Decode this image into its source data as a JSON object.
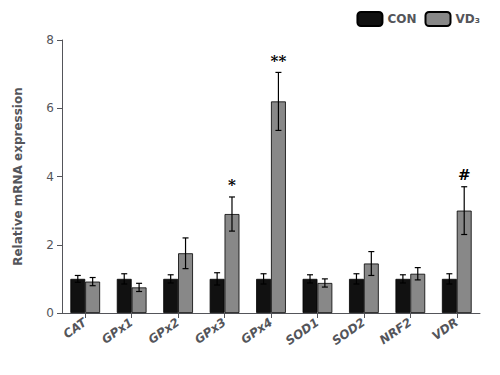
{
  "chart_data": {
    "type": "bar",
    "ylabel": "Relative mRNA expression",
    "categories": [
      "CAT",
      "GPx1",
      "GPx2",
      "GPx3",
      "GPx4",
      "SOD1",
      "SOD2",
      "NRF2",
      "VDR"
    ],
    "series": [
      {
        "name": "CON",
        "color": "#111111",
        "values": [
          1.0,
          1.0,
          1.0,
          1.0,
          1.0,
          1.0,
          1.0,
          1.0,
          1.0
        ],
        "errors": [
          0.1,
          0.15,
          0.12,
          0.18,
          0.15,
          0.12,
          0.15,
          0.12,
          0.15
        ]
      },
      {
        "name": "VD₃",
        "color": "#888888",
        "values": [
          0.92,
          0.75,
          1.75,
          2.9,
          6.2,
          0.88,
          1.45,
          1.15,
          3.0
        ],
        "errors": [
          0.12,
          0.12,
          0.45,
          0.5,
          0.85,
          0.12,
          0.35,
          0.18,
          0.7
        ]
      }
    ],
    "ylim": [
      0,
      8
    ],
    "yticks": [
      0,
      2,
      4,
      6,
      8
    ],
    "grid": false,
    "legend": "upper right",
    "annotations": [
      {
        "category": "GPx3",
        "series": "VD₃",
        "text": "*"
      },
      {
        "category": "GPx4",
        "series": "VD₃",
        "text": "**"
      },
      {
        "category": "VDR",
        "series": "VD₃",
        "text": "#"
      }
    ]
  }
}
